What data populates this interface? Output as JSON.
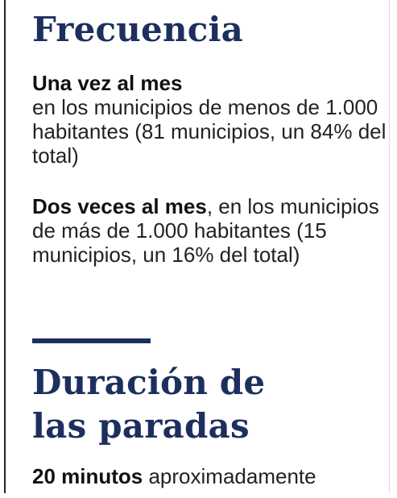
{
  "frecuencia": {
    "title": "Frecuencia",
    "item1_bold": "Una vez al mes",
    "item1_text": "en los municipios de menos de 1.000 habitantes (81 municipios, un 84% del total)",
    "item2_bold": "Dos veces al mes",
    "item2_text": ", en los municipios de más de 1.000 habitantes (15 municipios, un 16% del total)"
  },
  "duracion": {
    "title_line1": "Duración de",
    "title_line2": "las paradas",
    "bold": "20 minutos",
    "text": " aproximadamente"
  },
  "colors": {
    "heading": "#1c2f5e",
    "body_text": "#222222",
    "divider": "#1c2f5e"
  }
}
